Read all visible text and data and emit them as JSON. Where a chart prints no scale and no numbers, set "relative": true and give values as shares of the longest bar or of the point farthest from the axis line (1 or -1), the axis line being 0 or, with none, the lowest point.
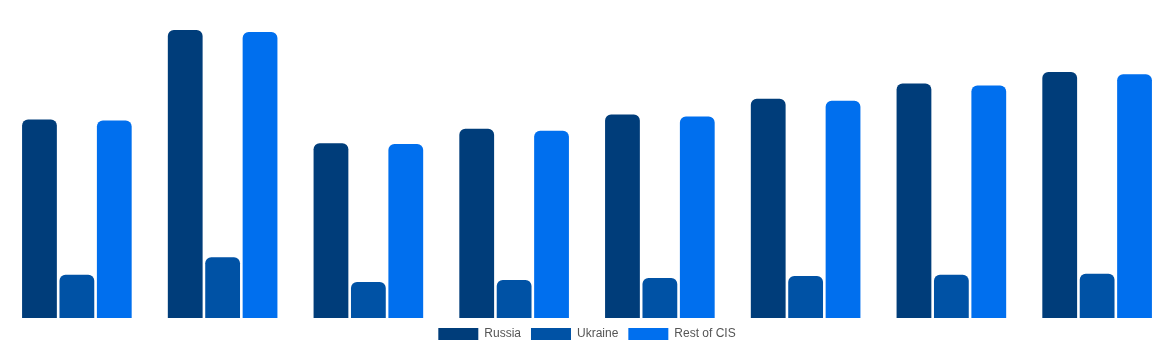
{
  "chart_data": {
    "type": "bar",
    "relative": true,
    "categories": [
      null,
      null,
      null,
      null,
      null,
      null,
      null,
      null
    ],
    "series": [
      {
        "name": "Russia",
        "color": "#003d7a",
        "values": [
          0.689,
          1,
          0.607,
          0.657,
          0.707,
          0.761,
          0.814,
          0.854
        ]
      },
      {
        "name": "Ukraine",
        "color": "#0052a5",
        "values": [
          0.15,
          0.211,
          0.125,
          0.132,
          0.139,
          0.146,
          0.15,
          0.154
        ]
      },
      {
        "name": "Rest of CIS",
        "color": "#006fee",
        "values": [
          0.686,
          0.993,
          0.604,
          0.65,
          0.7,
          0.754,
          0.807,
          0.846
        ]
      }
    ],
    "legend": "bottom"
  }
}
